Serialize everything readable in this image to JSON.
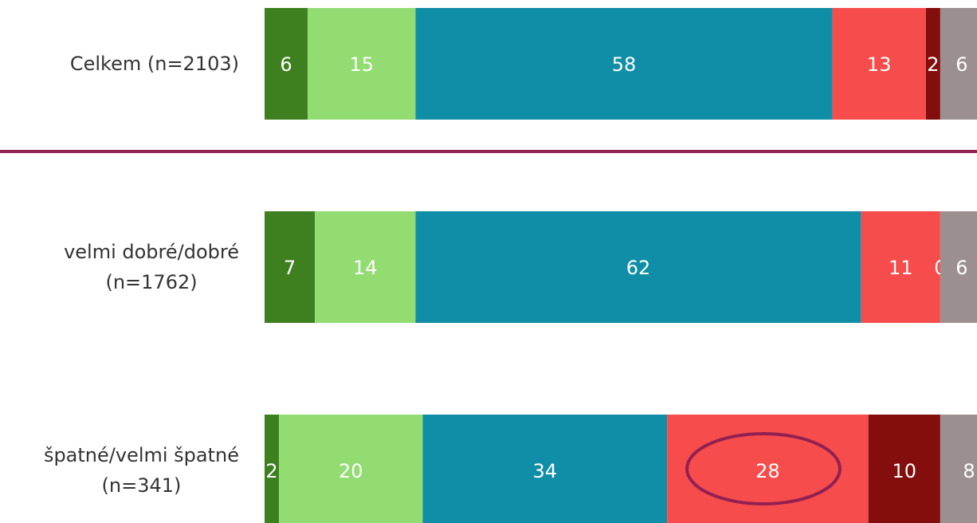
{
  "chart_data": {
    "type": "stacked-bar-horizontal",
    "categories": [
      "Celkem (n=2103)",
      "velmi dobré/dobré\n(n=1762)",
      "špatné/velmi špatné\n(n=341)"
    ],
    "series": [
      {
        "color": "#3e7f1f",
        "values": [
          6,
          7,
          2
        ]
      },
      {
        "color": "#93dc72",
        "values": [
          15,
          14,
          20
        ]
      },
      {
        "color": "#118ea7",
        "values": [
          58,
          62,
          34
        ]
      },
      {
        "color": "#f74c4c",
        "values": [
          13,
          11,
          28
        ]
      },
      {
        "color": "#840d0d",
        "values": [
          2,
          0,
          10
        ]
      },
      {
        "color": "#9c8f90",
        "values": [
          6,
          6,
          8
        ]
      }
    ]
  }
}
